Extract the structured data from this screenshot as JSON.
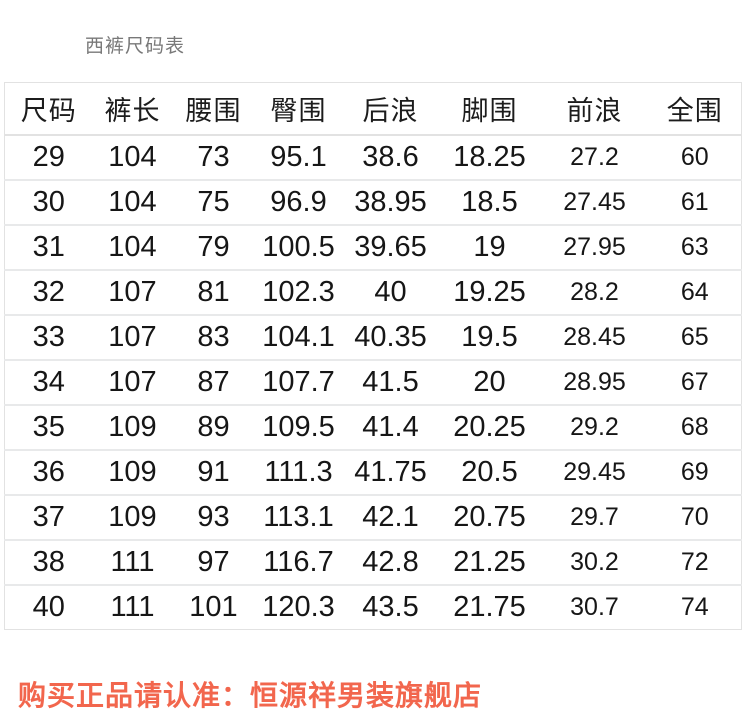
{
  "page": {
    "title": "西裤尺码表",
    "footer": "购买正品请认准：恒源祥男装旗舰店"
  },
  "colors": {
    "footer_red": "#f2664d",
    "title_gray": "#787878",
    "table_border": "#e2e2e2",
    "row_divider": "#e8e9ea",
    "text_dark": "#161616",
    "background": "#ffffff"
  },
  "chart_data": {
    "type": "table",
    "title": "西裤尺码表",
    "columns": [
      "尺码",
      "裤长",
      "腰围",
      "臀围",
      "后浪",
      "脚围",
      "前浪",
      "全围"
    ],
    "rows": [
      [
        "29",
        "104",
        "73",
        "95.1",
        "38.6",
        "18.25",
        "27.2",
        "60"
      ],
      [
        "30",
        "104",
        "75",
        "96.9",
        "38.95",
        "18.5",
        "27.45",
        "61"
      ],
      [
        "31",
        "104",
        "79",
        "100.5",
        "39.65",
        "19",
        "27.95",
        "63"
      ],
      [
        "32",
        "107",
        "81",
        "102.3",
        "40",
        "19.25",
        "28.2",
        "64"
      ],
      [
        "33",
        "107",
        "83",
        "104.1",
        "40.35",
        "19.5",
        "28.45",
        "65"
      ],
      [
        "34",
        "107",
        "87",
        "107.7",
        "41.5",
        "20",
        "28.95",
        "67"
      ],
      [
        "35",
        "109",
        "89",
        "109.5",
        "41.4",
        "20.25",
        "29.2",
        "68"
      ],
      [
        "36",
        "109",
        "91",
        "111.3",
        "41.75",
        "20.5",
        "29.45",
        "69"
      ],
      [
        "37",
        "109",
        "93",
        "113.1",
        "42.1",
        "20.75",
        "29.7",
        "70"
      ],
      [
        "38",
        "111",
        "97",
        "116.7",
        "42.8",
        "21.25",
        "30.2",
        "72"
      ],
      [
        "40",
        "111",
        "101",
        "120.3",
        "43.5",
        "21.75",
        "30.7",
        "74"
      ]
    ]
  }
}
